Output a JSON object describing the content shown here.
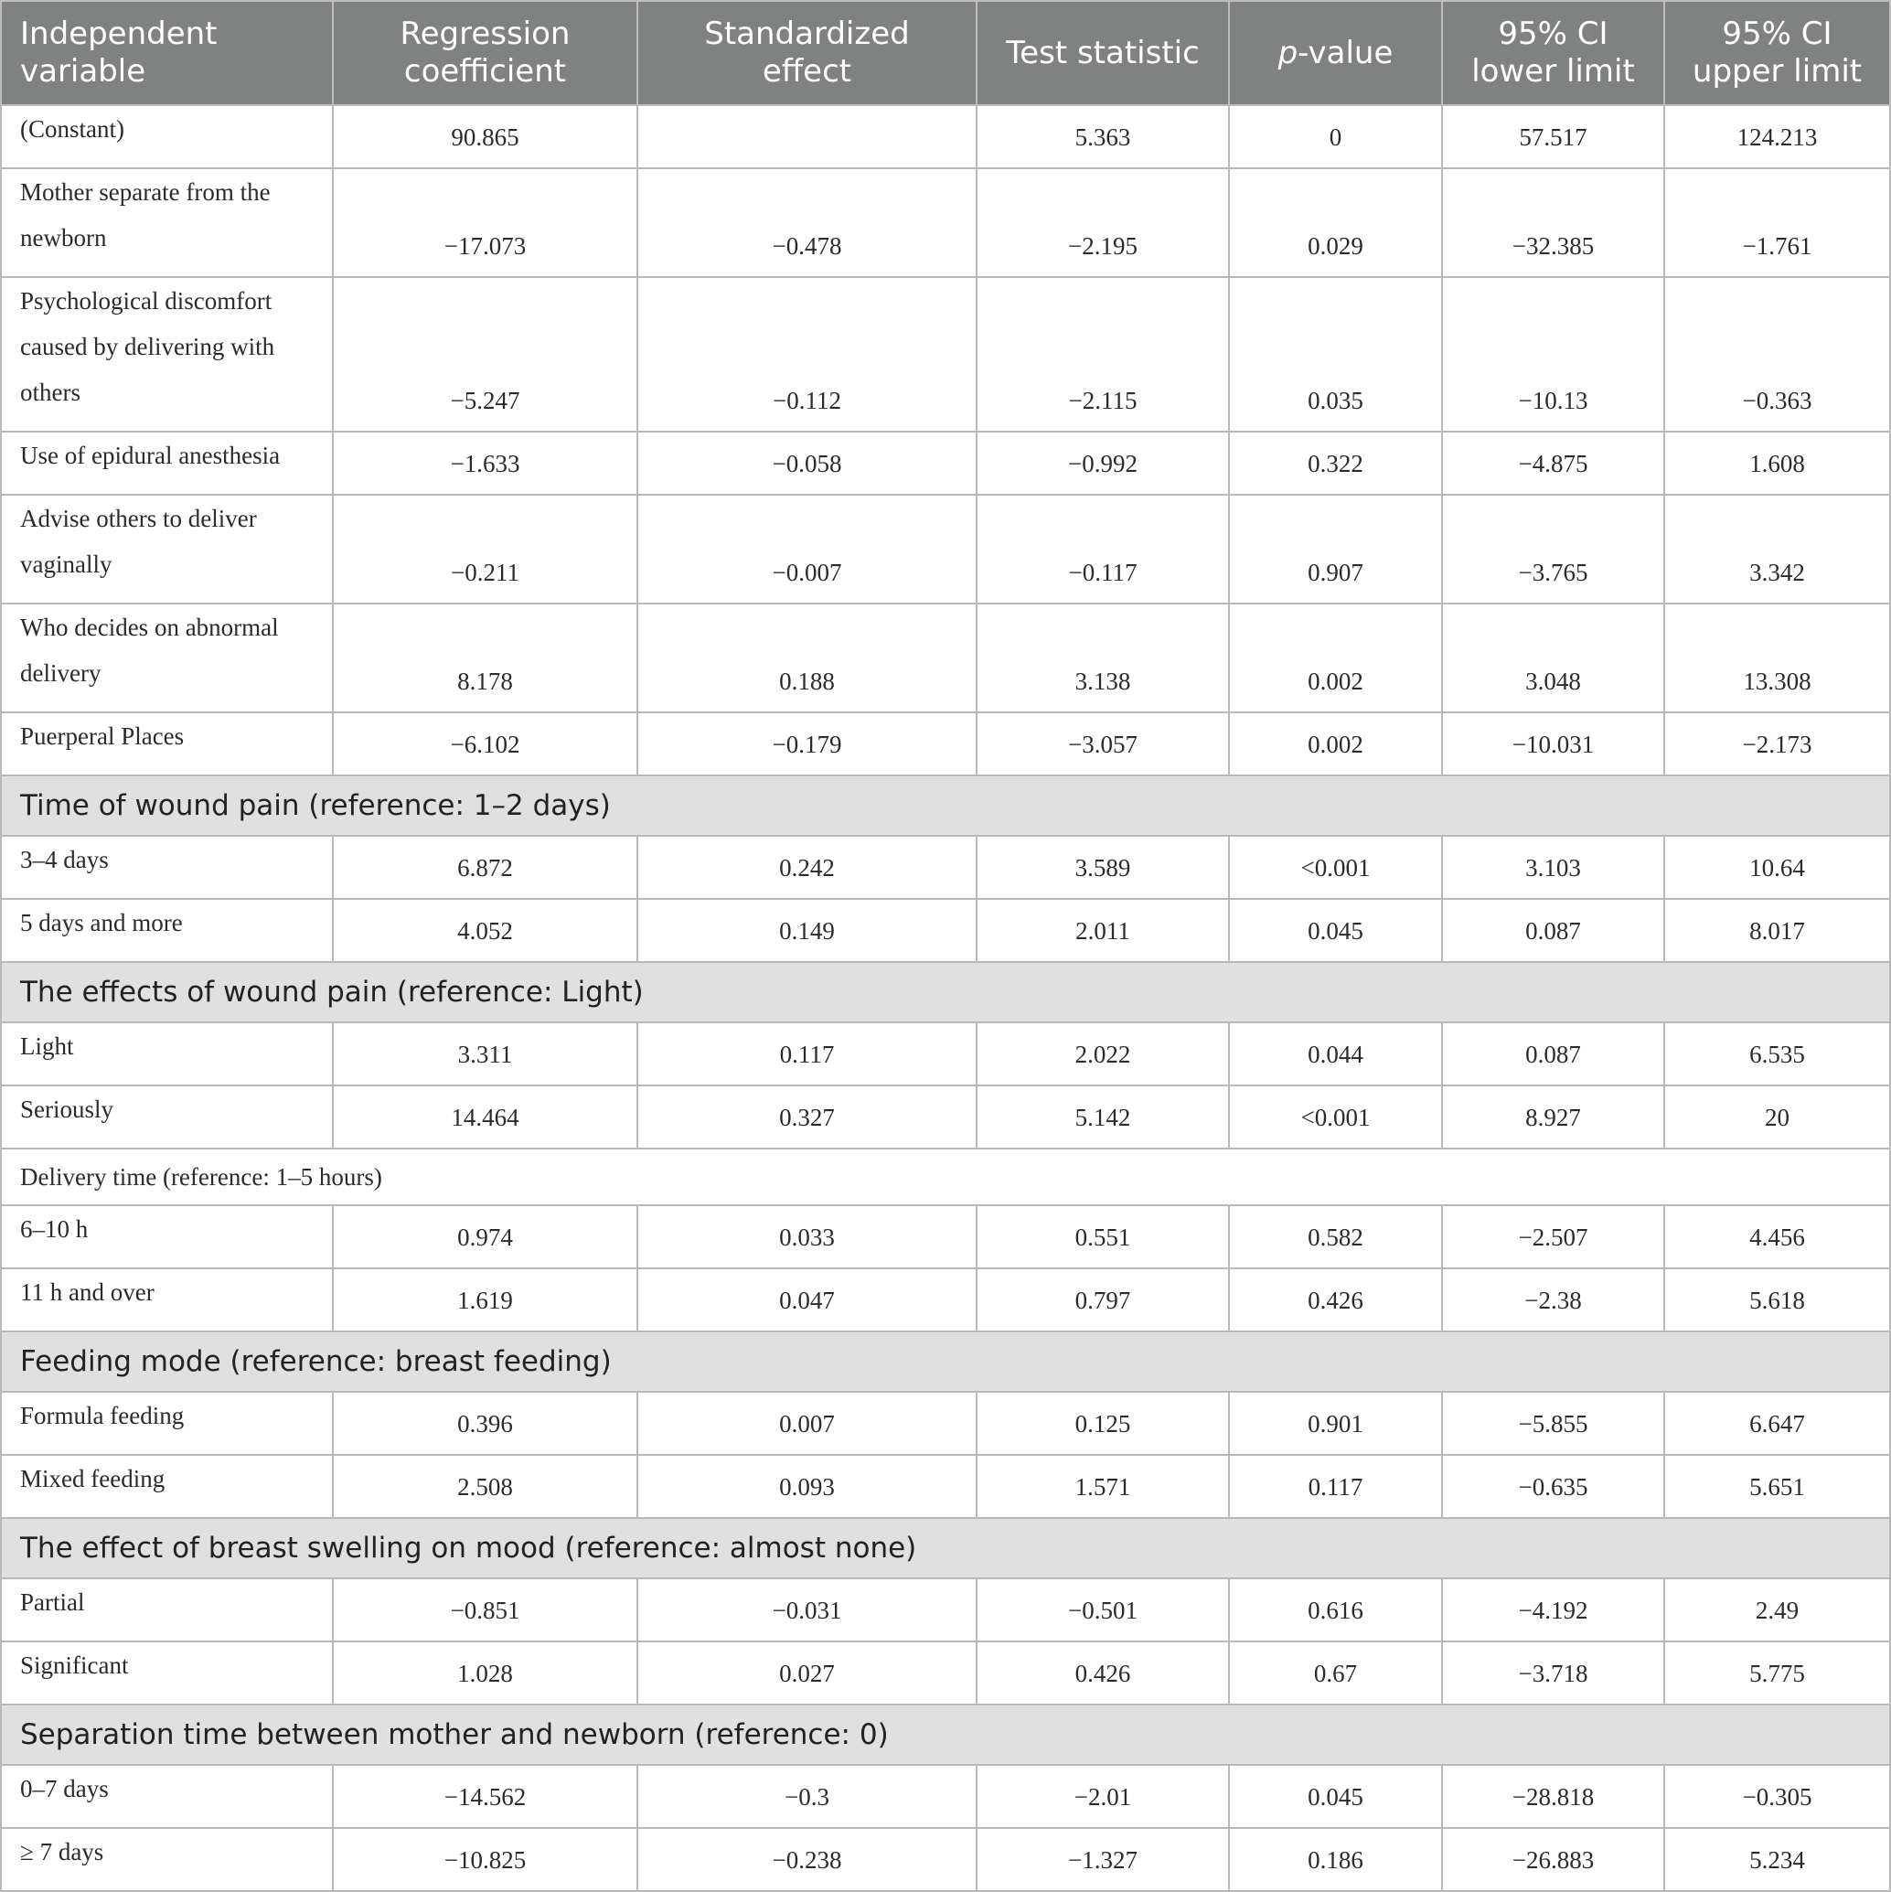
{
  "header": {
    "col0": "Independent variable",
    "col1": "Regression coefficient",
    "col2": "Standardized effect",
    "col3": "Test statistic",
    "col4_italic": "p",
    "col4_rest": "-value",
    "col5": "95% CI lower limit",
    "col6": "95% CI upper limit"
  },
  "rows": [
    {
      "type": "data",
      "h": 1,
      "label": "(Constant)",
      "coef": "90.865",
      "std": "",
      "stat": "5.363",
      "p": "0",
      "lo": "57.517",
      "hi": "124.213"
    },
    {
      "type": "data",
      "h": 2,
      "label": "Mother separate from the newborn",
      "coef": "−17.073",
      "std": "−0.478",
      "stat": "−2.195",
      "p": "0.029",
      "lo": "−32.385",
      "hi": "−1.761"
    },
    {
      "type": "data",
      "h": 3,
      "label": "Psychological discomfort caused by delivering with others",
      "coef": "−5.247",
      "std": "−0.112",
      "stat": "−2.115",
      "p": "0.035",
      "lo": "−10.13",
      "hi": "−0.363"
    },
    {
      "type": "data",
      "h": 1,
      "label": "Use of epidural anesthesia",
      "coef": "−1.633",
      "std": "−0.058",
      "stat": "−0.992",
      "p": "0.322",
      "lo": "−4.875",
      "hi": "1.608"
    },
    {
      "type": "data",
      "h": 2,
      "label": "Advise others to deliver vaginally",
      "coef": "−0.211",
      "std": "−0.007",
      "stat": "−0.117",
      "p": "0.907",
      "lo": "−3.765",
      "hi": "3.342"
    },
    {
      "type": "data",
      "h": 2,
      "label": "Who decides on abnormal delivery",
      "coef": "8.178",
      "std": "0.188",
      "stat": "3.138",
      "p": "0.002",
      "lo": "3.048",
      "hi": "13.308"
    },
    {
      "type": "data",
      "h": 1,
      "label": "Puerperal Places",
      "coef": "−6.102",
      "std": "−0.179",
      "stat": "−3.057",
      "p": "0.002",
      "lo": "−10.031",
      "hi": "−2.173"
    },
    {
      "type": "section",
      "label": "Time of wound pain (reference: 1–2 days)"
    },
    {
      "type": "data",
      "h": 1,
      "label": "3–4 days",
      "coef": "6.872",
      "std": "0.242",
      "stat": "3.589",
      "p": "<0.001",
      "lo": "3.103",
      "hi": "10.64"
    },
    {
      "type": "data",
      "h": 1,
      "label": "5 days and more",
      "coef": "4.052",
      "std": "0.149",
      "stat": "2.011",
      "p": "0.045",
      "lo": "0.087",
      "hi": "8.017"
    },
    {
      "type": "section",
      "label": "The effects of wound pain (reference: Light)"
    },
    {
      "type": "data",
      "h": 1,
      "label": "Light",
      "coef": "3.311",
      "std": "0.117",
      "stat": "2.022",
      "p": "0.044",
      "lo": "0.087",
      "hi": "6.535"
    },
    {
      "type": "data",
      "h": 1,
      "label": "Seriously",
      "coef": "14.464",
      "std": "0.327",
      "stat": "5.142",
      "p": "<0.001",
      "lo": "8.927",
      "hi": "20"
    },
    {
      "type": "plain-section",
      "label": "Delivery time (reference: 1–5 hours)"
    },
    {
      "type": "data",
      "h": 1,
      "label": "6–10 h",
      "coef": "0.974",
      "std": "0.033",
      "stat": "0.551",
      "p": "0.582",
      "lo": "−2.507",
      "hi": "4.456"
    },
    {
      "type": "data",
      "h": 1,
      "label": "11 h and over",
      "coef": "1.619",
      "std": "0.047",
      "stat": "0.797",
      "p": "0.426",
      "lo": "−2.38",
      "hi": "5.618"
    },
    {
      "type": "section",
      "label": "Feeding mode (reference: breast feeding)"
    },
    {
      "type": "data",
      "h": 1,
      "label": "Formula feeding",
      "coef": "0.396",
      "std": "0.007",
      "stat": "0.125",
      "p": "0.901",
      "lo": "−5.855",
      "hi": "6.647"
    },
    {
      "type": "data",
      "h": 1,
      "label": "Mixed feeding",
      "coef": "2.508",
      "std": "0.093",
      "stat": "1.571",
      "p": "0.117",
      "lo": "−0.635",
      "hi": "5.651"
    },
    {
      "type": "section",
      "label": "The effect of breast swelling on mood (reference: almost none)"
    },
    {
      "type": "data",
      "h": 1,
      "label": "Partial",
      "coef": "−0.851",
      "std": "−0.031",
      "stat": "−0.501",
      "p": "0.616",
      "lo": "−4.192",
      "hi": "2.49"
    },
    {
      "type": "data",
      "h": 1,
      "label": "Significant",
      "coef": "1.028",
      "std": "0.027",
      "stat": "0.426",
      "p": "0.67",
      "lo": "−3.718",
      "hi": "5.775"
    },
    {
      "type": "section",
      "label": "Separation time between mother and newborn (reference: 0)"
    },
    {
      "type": "data",
      "h": 1,
      "label": "0–7 days",
      "coef": "−14.562",
      "std": "−0.3",
      "stat": "−2.01",
      "p": "0.045",
      "lo": "−28.818",
      "hi": "−0.305"
    },
    {
      "type": "data",
      "h": 1,
      "label": "≥ 7 days",
      "coef": "−10.825",
      "std": "−0.238",
      "stat": "−1.327",
      "p": "0.186",
      "lo": "−26.883",
      "hi": "5.234"
    }
  ]
}
